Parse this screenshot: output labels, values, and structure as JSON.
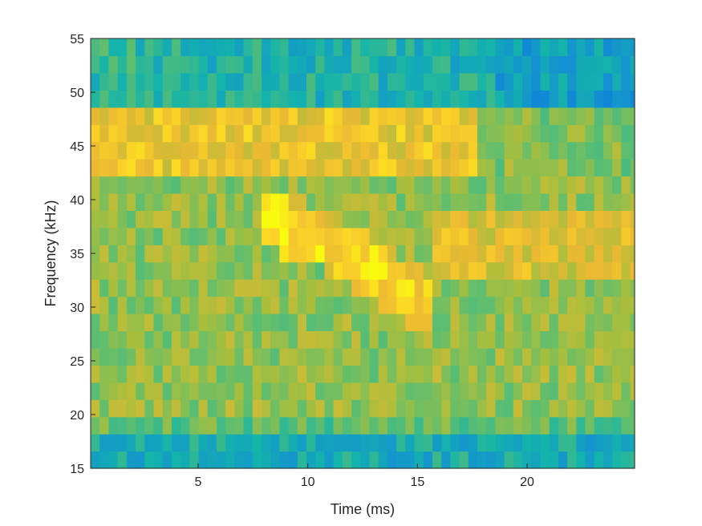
{
  "chart_data": {
    "type": "heatmap",
    "title": "",
    "xlabel": "Time (ms)",
    "ylabel": "Frequency (kHz)",
    "xlim": [
      0.1,
      24.9
    ],
    "ylim": [
      15,
      55
    ],
    "xticks": [
      5,
      10,
      15,
      20
    ],
    "yticks": [
      15,
      20,
      25,
      30,
      35,
      40,
      45,
      50,
      55
    ],
    "x_cell_width": 0.41,
    "y_cell_height": 1.6,
    "colormap": "parula",
    "grid": false,
    "legend": "none",
    "components": {
      "baseline": 0.66,
      "bands": [
        {
          "f_low": 15.0,
          "f_high": 18.2,
          "t_start": 0.1,
          "t_end": 24.9,
          "level": 0.42,
          "note": "low-frequency floor"
        },
        {
          "f_low": 18.2,
          "f_high": 19.8,
          "t_start": 0.1,
          "t_end": 24.9,
          "level": 0.58
        },
        {
          "f_low": 48.0,
          "f_high": 55.0,
          "t_start": 0.1,
          "t_end": 5.5,
          "level": 0.48
        },
        {
          "f_low": 48.0,
          "f_high": 55.0,
          "t_start": 5.5,
          "t_end": 18.5,
          "level": 0.45
        },
        {
          "f_low": 48.0,
          "f_high": 55.0,
          "t_start": 18.5,
          "t_end": 24.9,
          "level": 0.36
        },
        {
          "f_low": 43.0,
          "f_high": 48.0,
          "t_start": 0.1,
          "t_end": 17.8,
          "level": 0.84
        },
        {
          "f_low": 43.0,
          "f_high": 48.0,
          "t_start": 17.8,
          "t_end": 24.9,
          "level": 0.64
        }
      ],
      "sweep": {
        "points": [
          [
            7.8,
            38.5
          ],
          [
            10.0,
            37.0
          ],
          [
            12.5,
            34.0
          ],
          [
            14.5,
            31.5
          ],
          [
            15.5,
            30.0
          ]
        ],
        "half_width": 2.8,
        "peak_level": 0.96
      },
      "tail": {
        "t_start": 15.5,
        "t_end": 24.9,
        "f_low": 33.0,
        "f_high": 39.0,
        "level": 0.8
      },
      "noise": 0.1,
      "seed": 7
    }
  }
}
